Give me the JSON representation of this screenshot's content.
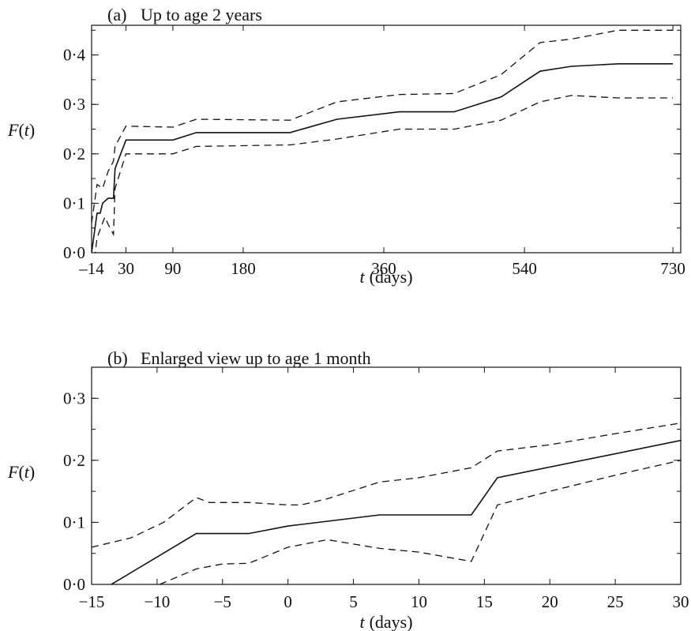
{
  "chart_data": [
    {
      "type": "line",
      "panel_label": "(a)",
      "title": "Up to age 2 years",
      "xlabel_var": "t",
      "xlabel_unit": "(days)",
      "ylabel_var": "F",
      "ylabel_arg": "(t)",
      "xlim": [
        -14,
        740
      ],
      "ylim": [
        0,
        0.46
      ],
      "xticks": [
        -14,
        30,
        90,
        180,
        360,
        540,
        730
      ],
      "xtick_labels": [
        "–14",
        "30",
        "90",
        "180",
        "360",
        "540",
        "730"
      ],
      "yticks": [
        0,
        0.1,
        0.2,
        0.3,
        0.4
      ],
      "ytick_labels": [
        "0·0",
        "0·1",
        "0·2",
        "0·3",
        "0·4"
      ],
      "series": [
        {
          "style": "solid",
          "x": [
            -14,
            -7,
            -3,
            0,
            7,
            14,
            16,
            30,
            90,
            120,
            240,
            300,
            380,
            450,
            510,
            560,
            600,
            660,
            730
          ],
          "y": [
            0,
            0.08,
            0.08,
            0.1,
            0.11,
            0.11,
            0.17,
            0.228,
            0.228,
            0.243,
            0.243,
            0.27,
            0.285,
            0.285,
            0.315,
            0.367,
            0.377,
            0.382,
            0.382
          ]
        },
        {
          "style": "dashed",
          "x": [
            -14,
            -7,
            0,
            7,
            14,
            16,
            30,
            90,
            120,
            240,
            300,
            380,
            450,
            510,
            560,
            600,
            660,
            730
          ],
          "y": [
            0.06,
            0.138,
            0.13,
            0.164,
            0.185,
            0.215,
            0.256,
            0.254,
            0.27,
            0.268,
            0.305,
            0.32,
            0.322,
            0.36,
            0.425,
            0.432,
            0.45,
            0.45
          ]
        },
        {
          "style": "dashed",
          "x": [
            -14,
            -7,
            0,
            3,
            7,
            14,
            16,
            30,
            90,
            120,
            240,
            300,
            380,
            450,
            510,
            560,
            600,
            660,
            730
          ],
          "y": [
            -0.06,
            0.03,
            0.06,
            0.072,
            0.058,
            0.037,
            0.13,
            0.2,
            0.2,
            0.215,
            0.218,
            0.23,
            0.25,
            0.25,
            0.268,
            0.305,
            0.318,
            0.313,
            0.313
          ]
        }
      ]
    },
    {
      "type": "line",
      "panel_label": "(b)",
      "title": "Enlarged view up to age 1 month",
      "xlabel_var": "t",
      "xlabel_unit": "(days)",
      "ylabel_var": "F",
      "ylabel_arg": "(t)",
      "xlim": [
        -15,
        30
      ],
      "ylim": [
        0,
        0.35
      ],
      "xticks": [
        -15,
        -10,
        -5,
        0,
        5,
        10,
        15,
        20,
        25,
        30
      ],
      "xtick_labels": [
        "−15",
        "−10",
        "−5",
        "0",
        "5",
        "10",
        "15",
        "20",
        "25",
        "30"
      ],
      "yticks": [
        0,
        0.1,
        0.2,
        0.3
      ],
      "ytick_labels": [
        "0·0",
        "0·1",
        "0·2",
        "0·3"
      ],
      "series": [
        {
          "style": "solid",
          "x": [
            -13.5,
            -7,
            -3,
            0,
            7,
            14,
            16,
            30
          ],
          "y": [
            0,
            0.082,
            0.082,
            0.094,
            0.112,
            0.112,
            0.172,
            0.232
          ]
        },
        {
          "style": "dashed",
          "x": [
            -15,
            -12,
            -9.5,
            -7,
            -6,
            -3,
            0,
            1,
            3,
            7,
            10,
            14,
            16,
            20,
            25,
            30
          ],
          "y": [
            0.06,
            0.075,
            0.1,
            0.14,
            0.132,
            0.132,
            0.128,
            0.128,
            0.138,
            0.165,
            0.172,
            0.188,
            0.215,
            0.225,
            0.243,
            0.26
          ]
        },
        {
          "style": "dashed",
          "x": [
            -9.8,
            -7,
            -5,
            -3,
            0,
            3,
            7,
            10,
            14,
            16,
            20,
            25,
            30
          ],
          "y": [
            0,
            0.025,
            0.033,
            0.034,
            0.06,
            0.072,
            0.058,
            0.052,
            0.037,
            0.128,
            0.15,
            0.176,
            0.2
          ]
        }
      ]
    }
  ]
}
